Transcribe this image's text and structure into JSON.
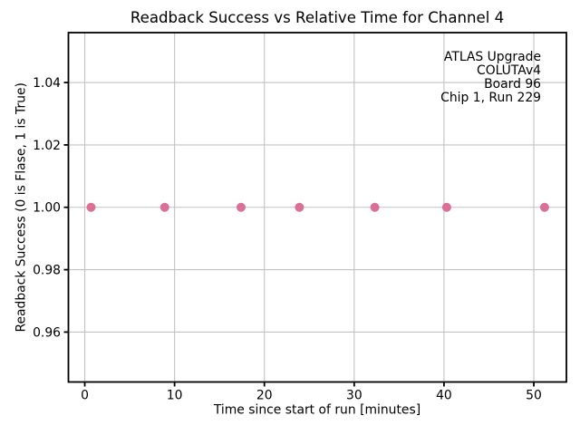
{
  "chart_data": {
    "type": "scatter",
    "title": "Readback Success vs Relative Time for Channel 4",
    "xlabel": "Time since start of run [minutes]",
    "ylabel": "Readback Success (0 is Flase, 1 is True)",
    "x": [
      0.7,
      8.9,
      17.4,
      23.9,
      32.3,
      40.3,
      51.2
    ],
    "y": [
      1.0,
      1.0,
      1.0,
      1.0,
      1.0,
      1.0,
      1.0
    ],
    "xlim": [
      -1.82,
      53.63
    ],
    "ylim": [
      0.944,
      1.056
    ],
    "xticks": [
      0,
      10,
      20,
      30,
      40,
      50
    ],
    "xtick_labels": [
      "0",
      "10",
      "20",
      "30",
      "40",
      "50"
    ],
    "yticks": [
      0.96,
      0.98,
      1.0,
      1.02,
      1.04
    ],
    "ytick_labels": [
      "0.96",
      "0.98",
      "1.00",
      "1.02",
      "1.04"
    ],
    "grid": true,
    "legend_position": "none",
    "marker_color": "#db7093",
    "grid_color": "#c2c2c2",
    "spine_color": "#000000",
    "background_color": "#ffffff",
    "annotation": {
      "align": "right",
      "lines": [
        "ATLAS Upgrade",
        "COLUTAv4",
        "Board 96",
        "Chip 1, Run 229"
      ]
    }
  }
}
